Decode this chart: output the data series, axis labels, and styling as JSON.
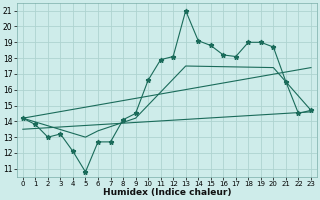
{
  "xlabel": "Humidex (Indice chaleur)",
  "xlim": [
    -0.5,
    23.5
  ],
  "ylim": [
    10.5,
    21.5
  ],
  "yticks": [
    11,
    12,
    13,
    14,
    15,
    16,
    17,
    18,
    19,
    20,
    21
  ],
  "xticks": [
    0,
    1,
    2,
    3,
    4,
    5,
    6,
    7,
    8,
    9,
    10,
    11,
    12,
    13,
    14,
    15,
    16,
    17,
    18,
    19,
    20,
    21,
    22,
    23
  ],
  "bg_color": "#ceecea",
  "grid_color": "#aed4d0",
  "line_color": "#1a6b5a",
  "main_x": [
    0,
    1,
    2,
    3,
    4,
    5,
    6,
    7,
    8,
    9,
    10,
    11,
    12,
    13,
    14,
    15,
    16,
    17,
    18,
    19,
    20,
    21,
    22,
    23
  ],
  "main_y": [
    14.2,
    13.8,
    13.0,
    13.2,
    12.1,
    10.8,
    12.7,
    12.7,
    14.1,
    14.5,
    16.6,
    17.9,
    18.1,
    21.0,
    19.1,
    18.8,
    18.2,
    18.1,
    19.0,
    19.0,
    18.7,
    16.5,
    14.5,
    14.7
  ],
  "trend1_x": [
    0,
    23
  ],
  "trend1_y": [
    14.2,
    17.4
  ],
  "trend2_x": [
    0,
    23
  ],
  "trend2_y": [
    13.5,
    14.6
  ],
  "trend3_x": [
    0,
    5,
    6,
    9,
    13,
    20,
    23
  ],
  "trend3_y": [
    14.2,
    13.0,
    13.4,
    14.2,
    17.5,
    17.4,
    14.7
  ]
}
